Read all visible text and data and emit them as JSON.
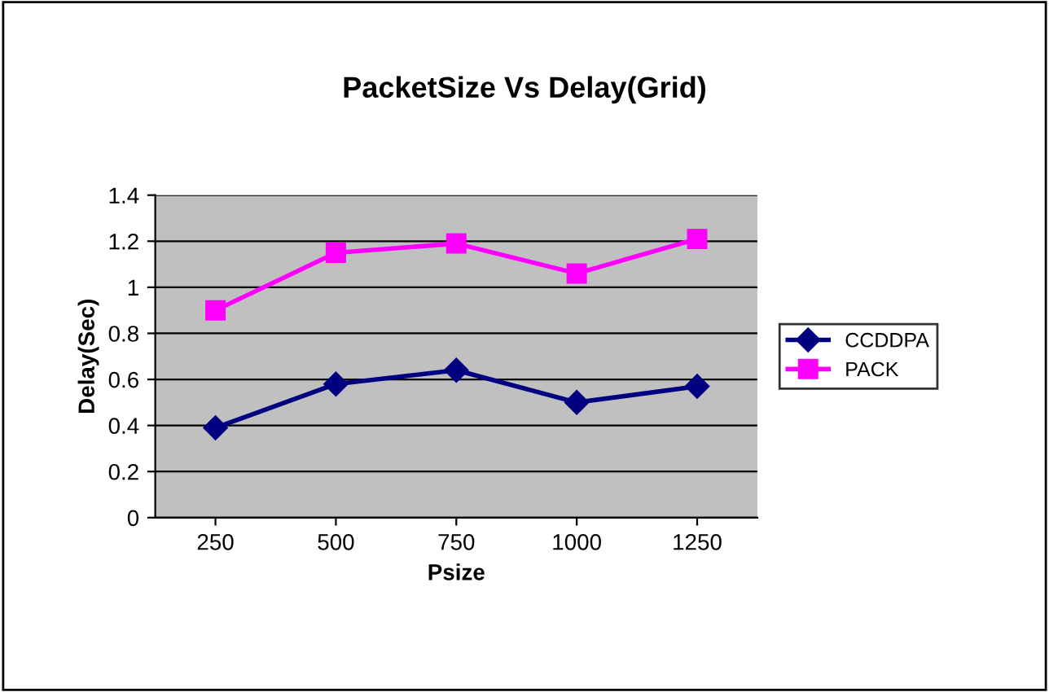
{
  "chart_data": {
    "type": "line",
    "title": "PacketSize Vs Delay(Grid)",
    "xlabel": "Psize",
    "ylabel": "Delay(Sec)",
    "categories": [
      "250",
      "500",
      "750",
      "1000",
      "1250"
    ],
    "series": [
      {
        "name": "CCDDPA",
        "color": "#000080",
        "marker": "diamond",
        "values": [
          0.39,
          0.58,
          0.64,
          0.5,
          0.57
        ]
      },
      {
        "name": "PACK",
        "color": "#ff00ff",
        "marker": "square",
        "values": [
          0.9,
          1.15,
          1.19,
          1.06,
          1.21
        ]
      }
    ],
    "ylim": [
      0,
      1.4
    ],
    "yticks": [
      0,
      0.2,
      0.4,
      0.6,
      0.8,
      1,
      1.2,
      1.4
    ],
    "grid": "y",
    "legend": "right",
    "line_style": "solid"
  }
}
